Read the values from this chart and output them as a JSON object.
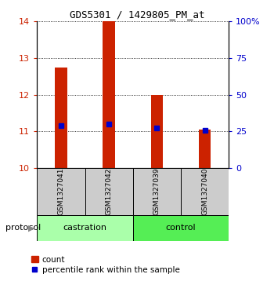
{
  "title": "GDS5301 / 1429805_PM_at",
  "samples": [
    "GSM1327041",
    "GSM1327042",
    "GSM1327039",
    "GSM1327040"
  ],
  "bar_tops": [
    12.75,
    14.0,
    12.0,
    11.05
  ],
  "bar_bottom": 10.0,
  "percentile_values": [
    11.15,
    11.2,
    11.1,
    11.02
  ],
  "ylim_left": [
    10,
    14
  ],
  "ylim_right": [
    0,
    100
  ],
  "yticks_left": [
    10,
    11,
    12,
    13,
    14
  ],
  "yticks_right": [
    0,
    25,
    50,
    75,
    100
  ],
  "ytick_right_labels": [
    "0",
    "25",
    "50",
    "75",
    "100%"
  ],
  "bar_color": "#cc2200",
  "marker_color": "#0000cc",
  "bar_width": 0.25,
  "groups": [
    {
      "label": "castration",
      "samples": [
        0,
        1
      ],
      "color": "#aaffaa"
    },
    {
      "label": "control",
      "samples": [
        2,
        3
      ],
      "color": "#55ee55"
    }
  ],
  "protocol_label": "protocol",
  "legend_count_label": "count",
  "legend_pct_label": "percentile rank within the sample",
  "sample_box_color": "#cccccc",
  "grid_color": "#000000"
}
